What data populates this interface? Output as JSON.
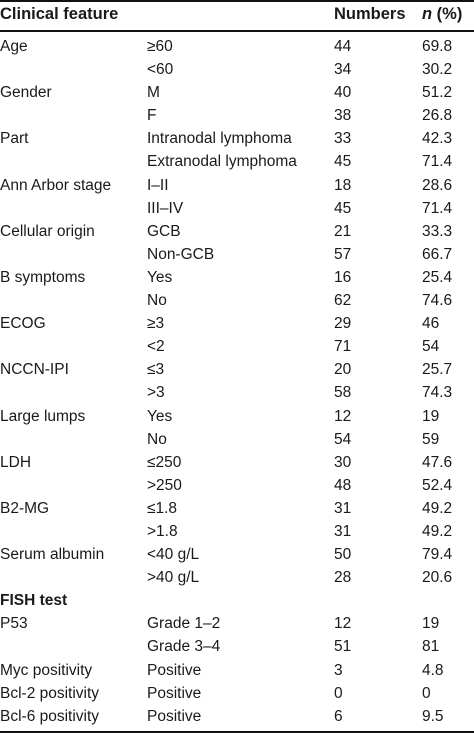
{
  "table": {
    "headers": {
      "feature": "Clinical feature",
      "numbers": "Numbers",
      "n_italic": "n",
      "percent": " (%)"
    },
    "rows": [
      {
        "feature": "Age",
        "level": "≥60",
        "numbers": "44",
        "percent": "69.8"
      },
      {
        "feature": "",
        "level": "<60",
        "numbers": "34",
        "percent": "30.2"
      },
      {
        "feature": "Gender",
        "level": "M",
        "numbers": "40",
        "percent": "51.2"
      },
      {
        "feature": "",
        "level": "F",
        "numbers": "38",
        "percent": "26.8"
      },
      {
        "feature": "Part",
        "level": "Intranodal lymphoma",
        "numbers": "33",
        "percent": "42.3"
      },
      {
        "feature": "",
        "level": "Extranodal lymphoma",
        "numbers": "45",
        "percent": "71.4"
      },
      {
        "feature": "Ann Arbor stage",
        "level": "I–II",
        "numbers": "18",
        "percent": "28.6"
      },
      {
        "feature": "",
        "level": "III–IV",
        "numbers": "45",
        "percent": "71.4"
      },
      {
        "feature": "Cellular origin",
        "level": "GCB",
        "numbers": "21",
        "percent": "33.3"
      },
      {
        "feature": "",
        "level": "Non-GCB",
        "numbers": "57",
        "percent": "66.7"
      },
      {
        "feature": "B symptoms",
        "level": "Yes",
        "numbers": "16",
        "percent": "25.4"
      },
      {
        "feature": "",
        "level": "No",
        "numbers": "62",
        "percent": "74.6"
      },
      {
        "feature": "ECOG",
        "level": "≥3",
        "numbers": "29",
        "percent": "46"
      },
      {
        "feature": "",
        "level": "<2",
        "numbers": "71",
        "percent": "54"
      },
      {
        "feature": "NCCN-IPI",
        "level": "≤3",
        "numbers": "20",
        "percent": "25.7"
      },
      {
        "feature": "",
        "level": ">3",
        "numbers": "58",
        "percent": "74.3"
      },
      {
        "feature": "Large lumps",
        "level": "Yes",
        "numbers": "12",
        "percent": "19"
      },
      {
        "feature": "",
        "level": "No",
        "numbers": "54",
        "percent": "59"
      },
      {
        "feature": "LDH",
        "level": "≤250",
        "numbers": "30",
        "percent": "47.6"
      },
      {
        "feature": "",
        "level": ">250",
        "numbers": "48",
        "percent": "52.4"
      },
      {
        "feature": "B2-MG",
        "level": "≤1.8",
        "numbers": "31",
        "percent": "49.2"
      },
      {
        "feature": "",
        "level": ">1.8",
        "numbers": "31",
        "percent": "49.2"
      },
      {
        "feature": "Serum albumin",
        "level": "<40 g/L",
        "numbers": "50",
        "percent": "79.4"
      },
      {
        "feature": "",
        "level": ">40 g/L",
        "numbers": "28",
        "percent": "20.6"
      },
      {
        "feature": "FISH test",
        "level": "",
        "numbers": "",
        "percent": "",
        "section": true
      },
      {
        "feature": "P53",
        "level": "Grade 1–2",
        "numbers": "12",
        "percent": "19"
      },
      {
        "feature": "",
        "level": "Grade 3–4",
        "numbers": "51",
        "percent": "81"
      },
      {
        "feature": "Myc positivity",
        "level": "Positive",
        "numbers": "3",
        "percent": "4.8"
      },
      {
        "feature": "Bcl-2 positivity",
        "level": "Positive",
        "numbers": "0",
        "percent": "0"
      },
      {
        "feature": "Bcl-6 positivity",
        "level": "Positive",
        "numbers": "6",
        "percent": "9.5"
      }
    ]
  }
}
